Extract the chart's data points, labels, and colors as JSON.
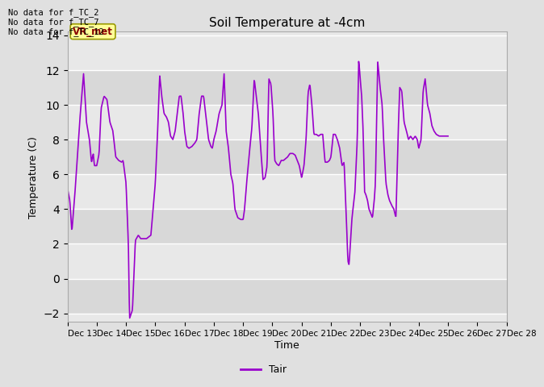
{
  "title": "Soil Temperature at -4cm",
  "xlabel": "Time",
  "ylabel": "Temperature (C)",
  "ylim": [
    -2.5,
    14.2
  ],
  "yticks": [
    -2,
    0,
    2,
    4,
    6,
    8,
    10,
    12,
    14
  ],
  "line_color": "#9900cc",
  "line_width": 1.2,
  "legend_label": "Tair",
  "legend_color": "#9900cc",
  "bg_color": "#e0e0e0",
  "plot_bg_color": "#e8e8e8",
  "annotations": [
    "No data for f_TC_2",
    "No data for f_TC_7",
    "No data for f_TC_12"
  ],
  "vr_met_label": "VR_met",
  "x_tick_labels": [
    "Dec 13",
    "Dec 14",
    "Dec 15",
    "Dec 16",
    "Dec 17",
    "Dec 18",
    "Dec 19",
    "Dec 20",
    "Dec 21",
    "Dec 22",
    "Dec 23",
    "Dec 24",
    "Dec 25",
    "Dec 26",
    "Dec 27",
    "Dec 28"
  ],
  "x_tick_positions": [
    0,
    1,
    2,
    3,
    4,
    5,
    6,
    7,
    8,
    9,
    10,
    11,
    12,
    13,
    14,
    15
  ],
  "xlim": [
    0,
    15
  ],
  "control_points": [
    [
      0.0,
      5.2
    ],
    [
      0.08,
      4.5
    ],
    [
      0.15,
      2.7
    ],
    [
      0.25,
      4.8
    ],
    [
      0.42,
      9.1
    ],
    [
      0.55,
      11.8
    ],
    [
      0.65,
      9.0
    ],
    [
      0.75,
      8.0
    ],
    [
      0.82,
      6.7
    ],
    [
      0.88,
      7.2
    ],
    [
      0.92,
      6.5
    ],
    [
      1.0,
      6.5
    ],
    [
      1.08,
      7.2
    ],
    [
      1.15,
      9.8
    ],
    [
      1.25,
      10.5
    ],
    [
      1.35,
      10.3
    ],
    [
      1.45,
      9.0
    ],
    [
      1.55,
      8.5
    ],
    [
      1.65,
      7.0
    ],
    [
      1.75,
      6.8
    ],
    [
      1.85,
      6.7
    ],
    [
      1.9,
      6.8
    ],
    [
      2.0,
      5.5
    ],
    [
      2.08,
      2.0
    ],
    [
      2.12,
      -2.3
    ],
    [
      2.22,
      -1.8
    ],
    [
      2.32,
      2.2
    ],
    [
      2.42,
      2.5
    ],
    [
      2.5,
      2.3
    ],
    [
      2.6,
      2.3
    ],
    [
      2.7,
      2.3
    ],
    [
      2.85,
      2.5
    ],
    [
      3.0,
      5.5
    ],
    [
      3.08,
      8.5
    ],
    [
      3.15,
      11.7
    ],
    [
      3.22,
      10.5
    ],
    [
      3.3,
      9.5
    ],
    [
      3.38,
      9.3
    ],
    [
      3.45,
      9.0
    ],
    [
      3.52,
      8.2
    ],
    [
      3.6,
      8.0
    ],
    [
      3.68,
      8.5
    ],
    [
      3.75,
      9.5
    ],
    [
      3.82,
      10.5
    ],
    [
      3.88,
      10.5
    ],
    [
      3.95,
      9.5
    ],
    [
      4.0,
      8.5
    ],
    [
      4.08,
      7.6
    ],
    [
      4.15,
      7.5
    ],
    [
      4.25,
      7.6
    ],
    [
      4.35,
      7.8
    ],
    [
      4.42,
      8.0
    ],
    [
      4.5,
      9.5
    ],
    [
      4.58,
      10.5
    ],
    [
      4.65,
      10.5
    ],
    [
      4.72,
      9.5
    ],
    [
      4.82,
      8.0
    ],
    [
      4.9,
      7.6
    ],
    [
      4.95,
      7.5
    ],
    [
      5.0,
      8.0
    ],
    [
      5.08,
      8.5
    ],
    [
      5.18,
      9.5
    ],
    [
      5.28,
      10.0
    ],
    [
      5.35,
      11.8
    ],
    [
      5.42,
      8.5
    ],
    [
      5.5,
      7.5
    ],
    [
      5.58,
      6.0
    ],
    [
      5.65,
      5.5
    ],
    [
      5.72,
      4.0
    ],
    [
      5.82,
      3.5
    ],
    [
      5.92,
      3.4
    ],
    [
      6.0,
      3.4
    ],
    [
      6.05,
      4.0
    ],
    [
      6.12,
      5.5
    ],
    [
      6.2,
      7.0
    ],
    [
      6.3,
      8.7
    ],
    [
      6.38,
      11.5
    ],
    [
      6.45,
      10.5
    ],
    [
      6.52,
      9.5
    ],
    [
      6.6,
      7.5
    ],
    [
      6.68,
      5.7
    ],
    [
      6.75,
      5.8
    ],
    [
      6.82,
      6.5
    ],
    [
      6.88,
      11.5
    ],
    [
      6.95,
      11.2
    ],
    [
      7.02,
      9.5
    ],
    [
      7.08,
      6.8
    ],
    [
      7.15,
      6.6
    ],
    [
      7.22,
      6.5
    ],
    [
      7.3,
      6.8
    ],
    [
      7.38,
      6.8
    ],
    [
      7.45,
      6.9
    ],
    [
      7.52,
      7.0
    ],
    [
      7.6,
      7.2
    ],
    [
      7.7,
      7.2
    ],
    [
      7.78,
      7.1
    ],
    [
      7.85,
      6.8
    ],
    [
      7.92,
      6.5
    ],
    [
      8.0,
      5.8
    ],
    [
      8.08,
      6.5
    ],
    [
      8.15,
      8.0
    ],
    [
      8.22,
      10.7
    ],
    [
      8.28,
      11.2
    ],
    [
      8.35,
      10.0
    ],
    [
      8.42,
      8.3
    ],
    [
      8.5,
      8.3
    ],
    [
      8.58,
      8.2
    ],
    [
      8.65,
      8.3
    ],
    [
      8.72,
      8.3
    ],
    [
      8.8,
      6.7
    ],
    [
      8.88,
      6.7
    ],
    [
      8.95,
      6.8
    ],
    [
      9.0,
      7.0
    ],
    [
      9.08,
      8.3
    ],
    [
      9.15,
      8.3
    ],
    [
      9.22,
      8.0
    ],
    [
      9.3,
      7.5
    ],
    [
      9.38,
      6.5
    ],
    [
      9.45,
      6.7
    ],
    [
      9.52,
      3.8
    ],
    [
      9.58,
      1.0
    ],
    [
      9.62,
      0.8
    ],
    [
      9.72,
      3.5
    ],
    [
      9.82,
      5.0
    ],
    [
      9.9,
      8.0
    ],
    [
      9.95,
      12.6
    ],
    [
      10.0,
      11.5
    ],
    [
      10.05,
      10.5
    ],
    [
      10.1,
      8.5
    ],
    [
      10.15,
      5.0
    ],
    [
      10.2,
      4.8
    ],
    [
      10.25,
      4.5
    ],
    [
      10.3,
      4.0
    ],
    [
      10.42,
      3.5
    ],
    [
      10.48,
      4.5
    ],
    [
      10.52,
      5.5
    ],
    [
      10.6,
      12.5
    ],
    [
      10.68,
      11.0
    ],
    [
      10.75,
      10.0
    ],
    [
      10.8,
      8.0
    ],
    [
      10.88,
      5.5
    ],
    [
      10.95,
      4.8
    ],
    [
      11.0,
      4.5
    ],
    [
      11.08,
      4.2
    ],
    [
      11.15,
      4.0
    ],
    [
      11.22,
      3.5
    ],
    [
      11.3,
      8.5
    ],
    [
      11.35,
      11.0
    ],
    [
      11.42,
      10.8
    ],
    [
      11.5,
      9.0
    ],
    [
      11.58,
      8.5
    ],
    [
      11.65,
      8.0
    ],
    [
      11.72,
      8.2
    ],
    [
      11.8,
      8.0
    ],
    [
      11.88,
      8.2
    ],
    [
      11.95,
      8.0
    ],
    [
      12.0,
      7.5
    ],
    [
      12.08,
      8.0
    ],
    [
      12.15,
      10.8
    ],
    [
      12.22,
      11.5
    ],
    [
      12.3,
      10.0
    ],
    [
      12.38,
      9.5
    ],
    [
      12.45,
      8.8
    ],
    [
      12.52,
      8.5
    ],
    [
      12.6,
      8.3
    ],
    [
      12.7,
      8.2
    ],
    [
      12.78,
      8.2
    ],
    [
      12.85,
      8.2
    ],
    [
      12.92,
      8.2
    ],
    [
      13.0,
      8.2
    ]
  ]
}
